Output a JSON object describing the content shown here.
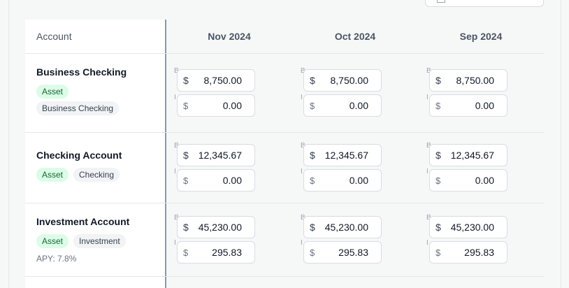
{
  "header": {
    "account_label": "Account",
    "months": [
      "Nov 2024",
      "Oct 2024",
      "Sep 2024"
    ]
  },
  "accounts": [
    {
      "name": "Business Checking",
      "badges": [
        "Asset",
        "Business Checking"
      ],
      "balances": [
        "8,750.00",
        "8,750.00",
        "8,750.00"
      ],
      "interest": [
        "0.00",
        "0.00",
        "0.00"
      ]
    },
    {
      "name": "Checking Account",
      "badges": [
        "Asset",
        "Checking"
      ],
      "balances": [
        "12,345.67",
        "12,345.67",
        "12,345.67"
      ],
      "interest": [
        "0.00",
        "0.00",
        "0.00"
      ]
    },
    {
      "name": "Investment Account",
      "badges": [
        "Asset",
        "Investment"
      ],
      "apy": "APY: 7.8%",
      "balances": [
        "45,230.00",
        "45,230.00",
        "45,230.00"
      ],
      "interest": [
        "295.83",
        "295.83",
        "295.83"
      ]
    }
  ],
  "field_labels": {
    "balance": "B",
    "interest": "I",
    "currency": "$"
  },
  "colors": {
    "asset_badge_bg": "#dcfce7",
    "asset_badge_text": "#166534",
    "type_badge_bg": "#f1f3f5"
  }
}
